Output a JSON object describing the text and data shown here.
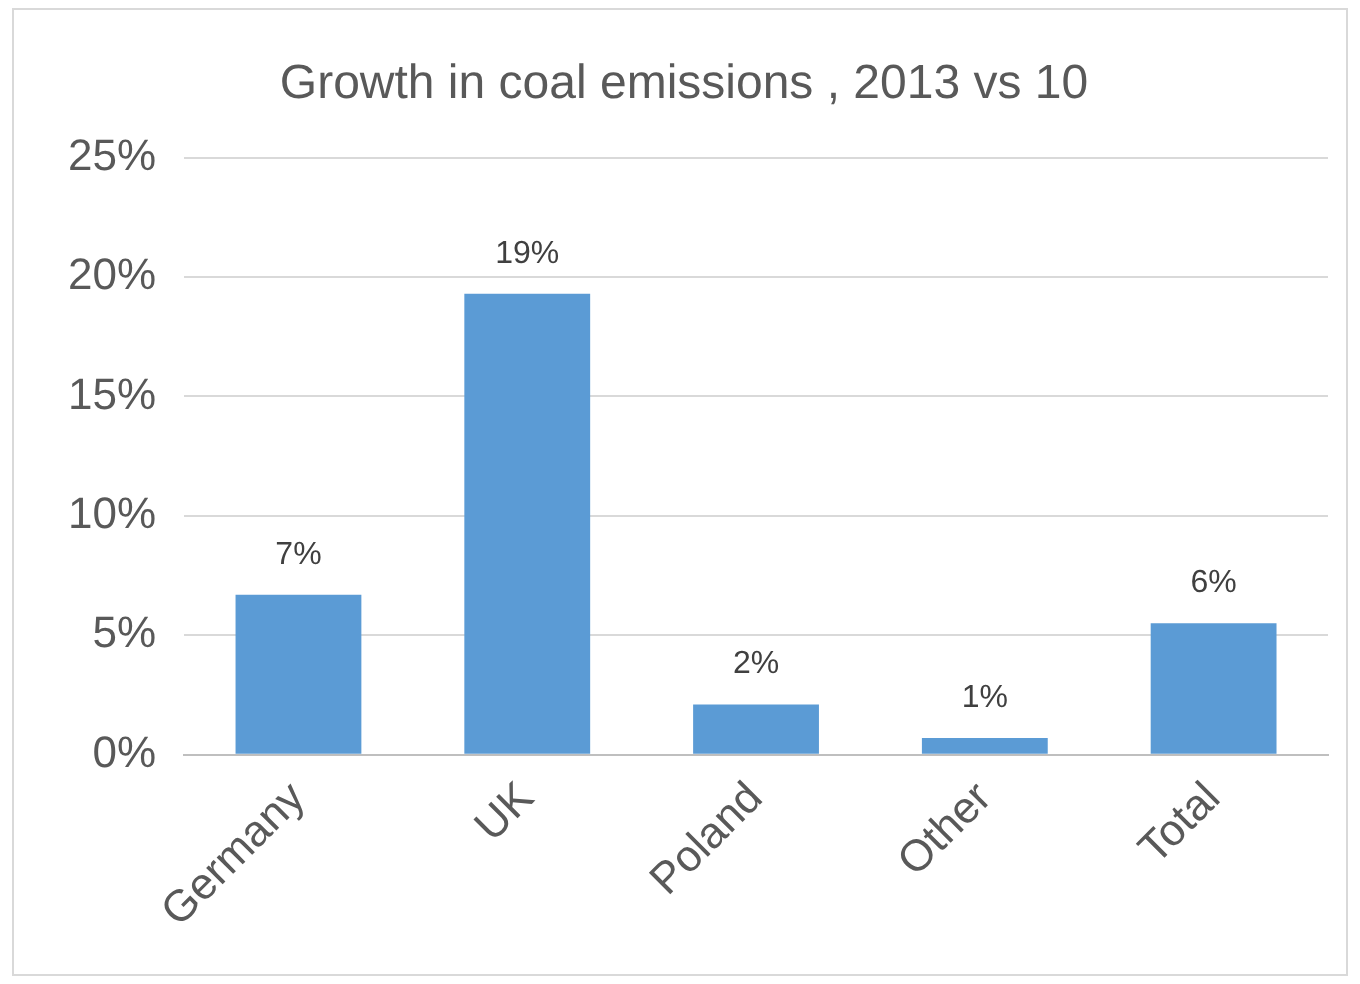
{
  "chart_data": {
    "type": "bar",
    "title": "Growth in coal emissions , 2013 vs 10",
    "categories": [
      "Germany",
      "UK",
      "Poland",
      "Other",
      "Total"
    ],
    "values": [
      6.7,
      19.3,
      2.1,
      0.7,
      5.5
    ],
    "value_labels": [
      "7%",
      "19%",
      "2%",
      "1%",
      "6%"
    ],
    "color": "#5b9bd5",
    "ylim": [
      0,
      25
    ],
    "yticks": [
      {
        "value": 0,
        "label": "0%"
      },
      {
        "value": 5,
        "label": "5%"
      },
      {
        "value": 10,
        "label": "10%"
      },
      {
        "value": 15,
        "label": "15%"
      },
      {
        "value": 20,
        "label": "20%"
      },
      {
        "value": 25,
        "label": "25%"
      }
    ],
    "grid": "y",
    "legend": false
  }
}
